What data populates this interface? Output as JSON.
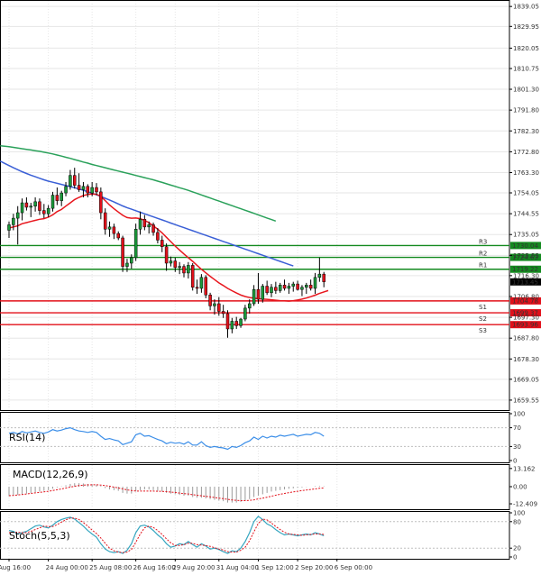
{
  "chart_data": {
    "type": "candlestick",
    "colors": {
      "bull": "#1a9a3a",
      "bear": "#e2101a",
      "ma_fast": "#e8161d",
      "ma_mid": "#3a5fd6",
      "ma_slow": "#2aa15a",
      "resistance": "#138a1f",
      "support": "#e2101a",
      "rsi": "#3b8ee8",
      "macd_hist": "#9a9a9a",
      "macd_signal": "#e2101a",
      "stoch_k": "#35a6c0",
      "stoch_d": "#e2101a",
      "grid": "#e6e6e6",
      "axis": "#000000"
    },
    "price_axis": {
      "ylim": [
        1655.0,
        1842.0
      ],
      "ticks": [
        "1839.05",
        "1829.95",
        "1820.05",
        "1810.75",
        "1801.30",
        "1791.80",
        "1782.30",
        "1772.80",
        "1763.30",
        "1754.05",
        "1744.55",
        "1735.05",
        "1725.55",
        "1716.30",
        "1706.80",
        "1697.30",
        "1687.80",
        "1678.30",
        "1669.05",
        "1659.55"
      ]
    },
    "time_axis": {
      "labels": [
        "Aug 16:00",
        "24 Aug 00:00",
        "25 Aug 08:00",
        "26 Aug 16:00",
        "29 Aug 20:00",
        "31 Aug 04:00",
        "1 Sep 12:00",
        "2 Sep 20:00",
        "6 Sep 00:00"
      ],
      "label_index": [
        0,
        9,
        19,
        29,
        38,
        48,
        57,
        66,
        75
      ]
    },
    "candles": [
      {
        "o": 1737.0,
        "h": 1741.0,
        "l": 1733.5,
        "c": 1739.5
      },
      {
        "o": 1739.5,
        "h": 1744.5,
        "l": 1737.0,
        "c": 1742.5
      },
      {
        "o": 1742.5,
        "h": 1748.0,
        "l": 1730.5,
        "c": 1745.0
      },
      {
        "o": 1745.0,
        "h": 1751.5,
        "l": 1741.5,
        "c": 1749.5
      },
      {
        "o": 1749.5,
        "h": 1752.0,
        "l": 1746.0,
        "c": 1747.5
      },
      {
        "o": 1747.5,
        "h": 1749.5,
        "l": 1743.0,
        "c": 1748.0
      },
      {
        "o": 1748.0,
        "h": 1752.0,
        "l": 1745.5,
        "c": 1750.0
      },
      {
        "o": 1750.0,
        "h": 1751.5,
        "l": 1744.0,
        "c": 1746.0
      },
      {
        "o": 1746.0,
        "h": 1749.0,
        "l": 1742.5,
        "c": 1744.5
      },
      {
        "o": 1744.5,
        "h": 1748.5,
        "l": 1743.0,
        "c": 1747.0
      },
      {
        "o": 1747.0,
        "h": 1754.5,
        "l": 1745.5,
        "c": 1753.0
      },
      {
        "o": 1753.0,
        "h": 1756.5,
        "l": 1748.5,
        "c": 1750.5
      },
      {
        "o": 1750.5,
        "h": 1755.0,
        "l": 1748.0,
        "c": 1754.0
      },
      {
        "o": 1754.0,
        "h": 1759.0,
        "l": 1752.5,
        "c": 1757.0
      },
      {
        "o": 1757.0,
        "h": 1764.5,
        "l": 1755.5,
        "c": 1762.0
      },
      {
        "o": 1762.0,
        "h": 1765.5,
        "l": 1756.0,
        "c": 1757.5
      },
      {
        "o": 1757.5,
        "h": 1763.0,
        "l": 1754.5,
        "c": 1755.5
      },
      {
        "o": 1755.5,
        "h": 1759.0,
        "l": 1752.0,
        "c": 1757.0
      },
      {
        "o": 1757.0,
        "h": 1758.0,
        "l": 1752.0,
        "c": 1754.0
      },
      {
        "o": 1754.0,
        "h": 1759.0,
        "l": 1752.5,
        "c": 1756.5
      },
      {
        "o": 1756.5,
        "h": 1758.5,
        "l": 1753.0,
        "c": 1754.5
      },
      {
        "o": 1754.5,
        "h": 1756.5,
        "l": 1742.0,
        "c": 1745.0
      },
      {
        "o": 1745.0,
        "h": 1747.0,
        "l": 1735.0,
        "c": 1737.5
      },
      {
        "o": 1737.5,
        "h": 1741.0,
        "l": 1734.0,
        "c": 1738.5
      },
      {
        "o": 1738.5,
        "h": 1740.0,
        "l": 1733.0,
        "c": 1735.5
      },
      {
        "o": 1735.5,
        "h": 1736.5,
        "l": 1732.5,
        "c": 1733.5
      },
      {
        "o": 1733.5,
        "h": 1734.5,
        "l": 1718.0,
        "c": 1720.5
      },
      {
        "o": 1720.5,
        "h": 1724.0,
        "l": 1718.0,
        "c": 1722.0
      },
      {
        "o": 1722.0,
        "h": 1726.0,
        "l": 1719.5,
        "c": 1724.5
      },
      {
        "o": 1724.5,
        "h": 1740.0,
        "l": 1723.0,
        "c": 1737.5
      },
      {
        "o": 1737.5,
        "h": 1745.5,
        "l": 1735.0,
        "c": 1742.0
      },
      {
        "o": 1742.0,
        "h": 1744.0,
        "l": 1737.0,
        "c": 1738.5
      },
      {
        "o": 1738.5,
        "h": 1741.0,
        "l": 1735.5,
        "c": 1739.5
      },
      {
        "o": 1739.5,
        "h": 1740.5,
        "l": 1734.5,
        "c": 1736.0
      },
      {
        "o": 1736.0,
        "h": 1738.0,
        "l": 1731.0,
        "c": 1732.5
      },
      {
        "o": 1732.5,
        "h": 1734.5,
        "l": 1727.0,
        "c": 1729.5
      },
      {
        "o": 1729.5,
        "h": 1731.0,
        "l": 1718.5,
        "c": 1722.0
      },
      {
        "o": 1722.0,
        "h": 1725.0,
        "l": 1720.5,
        "c": 1723.0
      },
      {
        "o": 1723.0,
        "h": 1724.5,
        "l": 1718.0,
        "c": 1720.0
      },
      {
        "o": 1720.0,
        "h": 1722.5,
        "l": 1717.0,
        "c": 1720.5
      },
      {
        "o": 1720.5,
        "h": 1721.5,
        "l": 1715.5,
        "c": 1717.5
      },
      {
        "o": 1717.5,
        "h": 1722.5,
        "l": 1715.0,
        "c": 1721.0
      },
      {
        "o": 1721.0,
        "h": 1722.0,
        "l": 1709.5,
        "c": 1711.0
      },
      {
        "o": 1711.0,
        "h": 1714.5,
        "l": 1708.0,
        "c": 1710.5
      },
      {
        "o": 1710.5,
        "h": 1717.0,
        "l": 1708.5,
        "c": 1715.5
      },
      {
        "o": 1715.5,
        "h": 1716.5,
        "l": 1706.0,
        "c": 1707.5
      },
      {
        "o": 1707.5,
        "h": 1708.5,
        "l": 1700.5,
        "c": 1702.5
      },
      {
        "o": 1702.5,
        "h": 1705.5,
        "l": 1698.5,
        "c": 1703.5
      },
      {
        "o": 1703.5,
        "h": 1706.5,
        "l": 1698.0,
        "c": 1700.0
      },
      {
        "o": 1700.0,
        "h": 1703.0,
        "l": 1697.0,
        "c": 1699.0
      },
      {
        "o": 1699.0,
        "h": 1700.5,
        "l": 1688.0,
        "c": 1692.0
      },
      {
        "o": 1692.0,
        "h": 1697.0,
        "l": 1690.0,
        "c": 1695.5
      },
      {
        "o": 1695.5,
        "h": 1697.5,
        "l": 1692.0,
        "c": 1693.5
      },
      {
        "o": 1693.5,
        "h": 1697.0,
        "l": 1692.5,
        "c": 1696.5
      },
      {
        "o": 1696.5,
        "h": 1703.0,
        "l": 1695.5,
        "c": 1701.5
      },
      {
        "o": 1701.5,
        "h": 1705.5,
        "l": 1699.0,
        "c": 1703.5
      },
      {
        "o": 1703.5,
        "h": 1712.0,
        "l": 1702.5,
        "c": 1710.0
      },
      {
        "o": 1710.0,
        "h": 1717.5,
        "l": 1703.5,
        "c": 1705.5
      },
      {
        "o": 1705.5,
        "h": 1712.5,
        "l": 1704.0,
        "c": 1711.5
      },
      {
        "o": 1711.5,
        "h": 1714.0,
        "l": 1707.5,
        "c": 1708.5
      },
      {
        "o": 1708.5,
        "h": 1712.5,
        "l": 1706.5,
        "c": 1711.0
      },
      {
        "o": 1711.0,
        "h": 1713.5,
        "l": 1708.0,
        "c": 1709.5
      },
      {
        "o": 1709.5,
        "h": 1713.0,
        "l": 1708.5,
        "c": 1712.0
      },
      {
        "o": 1712.0,
        "h": 1714.5,
        "l": 1709.5,
        "c": 1710.5
      },
      {
        "o": 1710.5,
        "h": 1713.0,
        "l": 1708.0,
        "c": 1711.5
      },
      {
        "o": 1711.5,
        "h": 1713.5,
        "l": 1709.0,
        "c": 1712.5
      },
      {
        "o": 1712.5,
        "h": 1714.0,
        "l": 1709.5,
        "c": 1710.0
      },
      {
        "o": 1710.0,
        "h": 1712.0,
        "l": 1707.0,
        "c": 1711.0
      },
      {
        "o": 1711.0,
        "h": 1713.0,
        "l": 1708.0,
        "c": 1712.0
      },
      {
        "o": 1712.0,
        "h": 1714.5,
        "l": 1709.5,
        "c": 1710.5
      },
      {
        "o": 1710.5,
        "h": 1717.5,
        "l": 1708.0,
        "c": 1715.5
      },
      {
        "o": 1715.5,
        "h": 1724.5,
        "l": 1713.5,
        "c": 1717.0
      },
      {
        "o": 1717.0,
        "h": 1718.0,
        "l": 1711.0,
        "c": 1713.5
      }
    ],
    "ma_fast": [
      1738.0,
      1738.5,
      1739.0,
      1740.0,
      1740.5,
      1741.0,
      1741.5,
      1742.0,
      1742.3,
      1743.0,
      1744.0,
      1745.5,
      1746.5,
      1748.0,
      1749.5,
      1751.0,
      1752.0,
      1752.8,
      1753.3,
      1753.5,
      1753.4,
      1752.5,
      1750.5,
      1748.5,
      1746.8,
      1745.3,
      1743.8,
      1742.8,
      1742.5,
      1742.6,
      1742.3,
      1741.5,
      1740.5,
      1739.0,
      1737.5,
      1735.8,
      1733.8,
      1731.8,
      1729.8,
      1728.0,
      1726.2,
      1724.5,
      1722.8,
      1721.0,
      1719.2,
      1717.6,
      1716.0,
      1714.5,
      1713.0,
      1711.8,
      1710.5,
      1709.4,
      1708.4,
      1707.5,
      1706.8,
      1706.3,
      1706.0,
      1705.8,
      1705.6,
      1705.5,
      1705.3,
      1705.1,
      1704.9,
      1704.8,
      1704.7,
      1704.9,
      1705.2,
      1705.6,
      1706.1,
      1706.7,
      1707.4,
      1708.2,
      1708.9,
      1709.5
    ],
    "ma_mid": [
      1768.5,
      1767.5,
      1766.5,
      1765.5,
      1764.6,
      1763.7,
      1762.9,
      1762.1,
      1761.4,
      1760.7,
      1760.0,
      1759.4,
      1758.9,
      1758.4,
      1757.9,
      1757.4,
      1756.9,
      1756.4,
      1755.8,
      1755.2,
      1754.6,
      1753.9,
      1753.2,
      1752.4,
      1751.6,
      1750.8,
      1749.9,
      1749.0,
      1748.1,
      1747.3,
      1746.6,
      1745.9,
      1745.2,
      1744.5,
      1743.8,
      1743.1,
      1742.4,
      1741.7,
      1741.0,
      1740.3,
      1739.6,
      1738.9,
      1738.2,
      1737.5,
      1736.8,
      1736.1,
      1735.4,
      1734.7,
      1734.0,
      1733.3,
      1732.6,
      1731.9,
      1731.2,
      1730.5,
      1729.8,
      1729.1,
      1728.4,
      1727.7,
      1727.0,
      1726.3,
      1725.6,
      1724.9,
      1724.2,
      1723.5,
      1722.8,
      1722.1,
      1721.4,
      1720.7
    ],
    "ma_slow": [
      1775.5,
      1775.3,
      1775.1,
      1774.8,
      1774.5,
      1774.2,
      1773.9,
      1773.6,
      1773.3,
      1773.0,
      1772.6,
      1772.2,
      1771.8,
      1771.3,
      1770.8,
      1770.3,
      1769.8,
      1769.2,
      1768.7,
      1768.1,
      1767.6,
      1767.0,
      1766.5,
      1766.0,
      1765.5,
      1765.0,
      1764.5,
      1764.0,
      1763.5,
      1763.0,
      1762.5,
      1762.0,
      1761.5,
      1761.0,
      1760.5,
      1760.0,
      1759.4,
      1758.8,
      1758.2,
      1757.6,
      1757.0,
      1756.4,
      1755.8,
      1755.2,
      1754.5,
      1753.8,
      1753.1,
      1752.4,
      1751.7,
      1751.0,
      1750.3,
      1749.6,
      1748.9,
      1748.2,
      1747.5,
      1746.8,
      1746.1,
      1745.4,
      1744.7,
      1744.0,
      1743.3,
      1742.6,
      1741.9,
      1741.2
    ],
    "levels": [
      {
        "name": "R3",
        "value": 1730.04,
        "label": "1730.04",
        "type": "resistance"
      },
      {
        "name": "R2",
        "value": 1724.63,
        "label": "1724.63",
        "type": "resistance"
      },
      {
        "name": "R1",
        "value": 1719.22,
        "label": "1719.22",
        "type": "resistance"
      },
      {
        "name": "S1",
        "value": 1704.78,
        "label": "1704.78",
        "type": "support"
      },
      {
        "name": "S2",
        "value": 1699.37,
        "label": "1699.37",
        "type": "support"
      },
      {
        "name": "S3",
        "value": 1693.96,
        "label": "1693.96",
        "type": "support"
      }
    ],
    "current_price": {
      "value": 1713.45,
      "label": "1713.45"
    },
    "rsi": {
      "title": "RSI(14)",
      "ylim": [
        0,
        100
      ],
      "ticks": [
        "100",
        "70",
        "30",
        "0"
      ],
      "values": [
        58,
        60,
        57,
        62,
        59,
        61,
        63,
        60,
        58,
        61,
        66,
        63,
        65,
        68,
        70,
        66,
        63,
        62,
        60,
        62,
        60,
        52,
        45,
        47,
        44,
        42,
        34,
        37,
        40,
        55,
        58,
        52,
        53,
        49,
        45,
        42,
        36,
        39,
        37,
        38,
        35,
        40,
        33,
        33,
        40,
        32,
        28,
        30,
        28,
        27,
        24,
        30,
        28,
        32,
        38,
        42,
        50,
        45,
        52,
        48,
        52,
        50,
        54,
        52,
        54,
        56,
        52,
        54,
        56,
        55,
        60,
        58,
        52
      ]
    },
    "macd": {
      "title": "MACD(12,26,9)",
      "ylim": [
        -15.0,
        15.0
      ],
      "ticks": [
        "13.162",
        "0.00",
        "-12.409"
      ],
      "hist": [
        -7.0,
        -6.5,
        -6.0,
        -5.5,
        -5.0,
        -4.5,
        -4.0,
        -3.5,
        -3.0,
        -2.5,
        -1.5,
        -0.5,
        0.2,
        1.0,
        2.0,
        2.5,
        2.5,
        2.3,
        2.0,
        1.8,
        1.5,
        0.5,
        -1.0,
        -2.0,
        -2.5,
        -3.0,
        -4.5,
        -5.0,
        -5.0,
        -3.5,
        -2.5,
        -2.0,
        -2.0,
        -2.5,
        -3.0,
        -3.5,
        -4.5,
        -5.0,
        -5.5,
        -6.0,
        -6.5,
        -6.5,
        -7.5,
        -8.0,
        -8.0,
        -8.5,
        -9.0,
        -9.5,
        -10.0,
        -10.5,
        -11.5,
        -11.5,
        -11.5,
        -11.0,
        -10.0,
        -9.0,
        -7.5,
        -6.5,
        -5.5,
        -4.5,
        -3.5,
        -3.0,
        -2.5,
        -2.0,
        -1.5,
        -1.2,
        -0.8,
        -0.5,
        -0.2,
        0.0,
        0.3,
        0.5,
        0.3
      ],
      "signal": [
        -6.5,
        -6.3,
        -6.0,
        -5.7,
        -5.3,
        -4.9,
        -4.5,
        -4.1,
        -3.7,
        -3.3,
        -2.8,
        -2.2,
        -1.6,
        -1.0,
        -0.3,
        0.3,
        0.8,
        1.1,
        1.3,
        1.4,
        1.4,
        1.2,
        0.8,
        0.3,
        -0.3,
        -0.9,
        -1.6,
        -2.3,
        -2.8,
        -3.1,
        -3.2,
        -3.2,
        -3.2,
        -3.2,
        -3.3,
        -3.4,
        -3.6,
        -3.9,
        -4.2,
        -4.6,
        -5.0,
        -5.3,
        -5.8,
        -6.2,
        -6.6,
        -7.0,
        -7.4,
        -7.8,
        -8.3,
        -8.7,
        -9.2,
        -9.6,
        -9.9,
        -10.1,
        -10.1,
        -9.9,
        -9.5,
        -8.9,
        -8.3,
        -7.6,
        -6.9,
        -6.2,
        -5.5,
        -4.9,
        -4.3,
        -3.8,
        -3.3,
        -2.8,
        -2.4,
        -2.0,
        -1.6,
        -1.2,
        -0.9
      ]
    },
    "stoch": {
      "title": "Stoch(5,5,3)",
      "ylim": [
        0,
        100
      ],
      "ticks": [
        "100",
        "80",
        "20",
        "0"
      ],
      "k": [
        60,
        58,
        52,
        55,
        58,
        64,
        70,
        72,
        68,
        66,
        72,
        80,
        85,
        88,
        90,
        86,
        78,
        70,
        60,
        52,
        45,
        30,
        18,
        12,
        10,
        12,
        8,
        15,
        30,
        55,
        70,
        72,
        68,
        60,
        50,
        42,
        30,
        22,
        25,
        30,
        28,
        35,
        28,
        22,
        30,
        25,
        18,
        20,
        17,
        12,
        8,
        14,
        12,
        20,
        35,
        55,
        80,
        92,
        85,
        75,
        70,
        62,
        55,
        50,
        52,
        50,
        48,
        50,
        52,
        50,
        55,
        52,
        48
      ],
      "d": [
        55,
        56,
        56,
        55,
        55,
        58,
        62,
        66,
        70,
        69,
        69,
        73,
        79,
        84,
        88,
        88,
        85,
        78,
        70,
        61,
        53,
        43,
        31,
        20,
        14,
        11,
        10,
        11,
        17,
        33,
        52,
        66,
        70,
        67,
        60,
        51,
        41,
        32,
        26,
        26,
        28,
        31,
        31,
        28,
        27,
        26,
        24,
        21,
        18,
        16,
        12,
        11,
        11,
        15,
        22,
        37,
        57,
        76,
        86,
        84,
        77,
        69,
        62,
        56,
        52,
        51,
        50,
        49,
        50,
        51,
        52,
        52,
        51
      ]
    }
  }
}
